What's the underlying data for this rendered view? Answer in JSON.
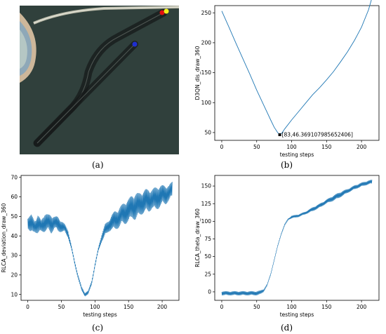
{
  "captions": {
    "a": "(a)",
    "b": "(b)",
    "c": "(c)",
    "d": "(d)"
  },
  "photo": {
    "background": "#2d3c38",
    "marker_colors": {
      "red": "#e01010",
      "yellow": "#f4f01a",
      "blue": "#1f2fd0"
    }
  },
  "chart_data": [
    {
      "id": "b",
      "type": "line",
      "xlabel": "testing steps",
      "ylabel": "D3QN_dis_draw_360",
      "xlim": [
        -10,
        225
      ],
      "ylim": [
        37,
        262
      ],
      "xticks": [
        0,
        50,
        100,
        150,
        200
      ],
      "yticks": [
        50,
        100,
        150,
        200,
        250
      ],
      "series": [
        {
          "color": "#1f77b4",
          "x": [
            0,
            10,
            20,
            30,
            40,
            50,
            60,
            70,
            75,
            80,
            83,
            86,
            90,
            100,
            110,
            120,
            130,
            140,
            150,
            160,
            170,
            180,
            190,
            200,
            210,
            215
          ],
          "y": [
            253,
            227,
            200,
            174,
            148,
            121,
            96,
            71,
            59,
            50,
            46.37,
            49,
            56,
            71,
            85,
            99,
            113,
            125,
            138,
            152,
            168,
            185,
            204,
            226,
            255,
            275
          ]
        }
      ],
      "annotation": {
        "x": 83,
        "y": 46.369107985652406,
        "text": "[83,46.369107985652406]"
      }
    },
    {
      "id": "c",
      "type": "line",
      "xlabel": "testing steps",
      "ylabel": "RLCA_deviation_draw_360",
      "xlim": [
        -10,
        225
      ],
      "ylim": [
        7,
        71
      ],
      "xticks": [
        0,
        50,
        100,
        150,
        200
      ],
      "yticks": [
        10,
        20,
        30,
        40,
        50,
        60,
        70
      ],
      "series": [
        {
          "color": "#1f77b4",
          "x": [
            0,
            5,
            10,
            15,
            20,
            25,
            30,
            35,
            40,
            45,
            50,
            55,
            60,
            65,
            70,
            75,
            80,
            85,
            90,
            95,
            100,
            105,
            110,
            115,
            120,
            125,
            130,
            135,
            140,
            145,
            150,
            155,
            160,
            165,
            170,
            175,
            180,
            185,
            190,
            195,
            200,
            205,
            210,
            215
          ],
          "y": [
            47,
            46,
            45,
            46,
            45,
            47,
            47,
            46,
            47,
            46,
            45,
            44,
            41,
            34,
            26,
            19,
            13,
            10,
            11,
            16,
            25,
            33,
            39,
            43,
            45,
            47,
            48,
            49,
            51,
            52,
            53,
            55,
            55,
            56,
            57,
            58,
            58,
            59,
            59,
            60,
            61,
            61,
            62,
            64
          ],
          "amp": [
            3,
            5,
            3,
            5,
            3,
            5,
            4,
            5,
            3,
            4,
            3,
            2,
            2,
            1,
            1,
            1,
            1,
            1,
            1,
            1,
            1,
            1,
            2,
            3,
            3,
            4,
            5,
            5,
            5,
            6,
            6,
            6,
            7,
            6,
            6,
            6,
            6,
            5,
            6,
            6,
            5,
            5,
            4,
            4
          ]
        }
      ]
    },
    {
      "id": "d",
      "type": "line",
      "xlabel": "testing steps",
      "ylabel": "RLCA_theta_draw_360",
      "xlim": [
        -10,
        225
      ],
      "ylim": [
        -12,
        165
      ],
      "xticks": [
        0,
        50,
        100,
        150,
        200
      ],
      "yticks": [
        0,
        25,
        50,
        75,
        100,
        125,
        150
      ],
      "series": [
        {
          "color": "#1f77b4",
          "x": [
            0,
            10,
            20,
            30,
            40,
            50,
            55,
            60,
            65,
            70,
            75,
            80,
            85,
            90,
            95,
            100,
            110,
            120,
            130,
            140,
            150,
            160,
            170,
            180,
            190,
            200,
            210,
            215
          ],
          "y": [
            -2,
            -2,
            -2,
            -2,
            -2,
            -2,
            -1,
            2,
            10,
            25,
            45,
            65,
            82,
            95,
            103,
            106,
            108,
            112,
            117,
            122,
            128,
            133,
            138,
            143,
            148,
            152,
            155,
            156
          ],
          "amp": [
            3,
            3,
            3,
            3,
            3,
            3,
            3,
            2,
            1,
            1,
            1,
            1,
            1,
            1,
            1,
            2,
            2,
            2,
            3,
            3,
            3,
            4,
            4,
            3,
            3,
            3,
            3,
            3
          ]
        }
      ]
    }
  ]
}
